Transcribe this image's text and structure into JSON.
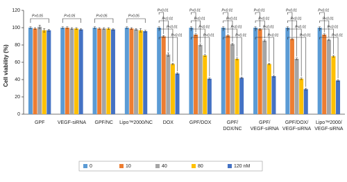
{
  "chart_data": {
    "type": "bar",
    "y_label": "Cell viability (%)",
    "categories": [
      [
        "GPF"
      ],
      [
        "VEGF-siRNA"
      ],
      [
        "GPF/NC"
      ],
      [
        "Lipo™2000/NC"
      ],
      [
        "DOX"
      ],
      [
        "GPF/DOX"
      ],
      [
        "GPF/",
        "DOX/NC"
      ],
      [
        "GPF/",
        "VEGF-siRNA"
      ],
      [
        "GPF/DOX/",
        "VEGF-siRNA"
      ],
      [
        "Lipo™2000/",
        "VEGF-siRNA"
      ]
    ],
    "series": [
      {
        "name": "0",
        "color": "#5b9bd5",
        "values": [
          100,
          100,
          100,
          100,
          100,
          100,
          100,
          100,
          100,
          100
        ],
        "errors": [
          1,
          1,
          1,
          1,
          1,
          1,
          1,
          1,
          1,
          1
        ]
      },
      {
        "name": "10",
        "color": "#ed7d31",
        "values": [
          99,
          100,
          99,
          99,
          90,
          92,
          91,
          98,
          87,
          92
        ],
        "errors": [
          1,
          1,
          1,
          1,
          1,
          1,
          1,
          1,
          1,
          1
        ]
      },
      {
        "name": "40",
        "color": "#a5a5a5",
        "values": [
          101,
          99,
          99,
          98,
          69,
          80,
          81,
          85,
          64,
          86
        ],
        "errors": [
          2,
          1,
          1,
          1,
          2,
          1,
          1,
          1,
          1,
          1
        ]
      },
      {
        "name": "80",
        "color": "#ffc000",
        "values": [
          97,
          99,
          99,
          97,
          58,
          68,
          64,
          58,
          41,
          67
        ],
        "errors": [
          2,
          1,
          1,
          2,
          1,
          1,
          1,
          1,
          1,
          1
        ]
      },
      {
        "name": "120 nM",
        "color": "#4472c4",
        "values": [
          97,
          98,
          98,
          96,
          47,
          41,
          42,
          44,
          29,
          39
        ],
        "errors": [
          1,
          1,
          1,
          1,
          1,
          1,
          1,
          1,
          1,
          1
        ]
      }
    ],
    "significance": [
      [
        "P>0.05"
      ],
      [
        "P>0.05"
      ],
      [
        "P>0.05"
      ],
      [
        "P>0.05"
      ],
      [
        "P<0.01",
        "P<0.01",
        "P<0.01",
        "P<0.01"
      ],
      [
        "P<0.01",
        "P<0.01",
        "P<0.01",
        "P<0.01"
      ],
      [
        "P<0.01",
        "P<0.01",
        "P<0.01",
        "P<0.01"
      ],
      [
        "P<0.01",
        "P<0.01",
        "P<0.01",
        "P<0.01"
      ],
      [
        "P<0.01",
        "P<0.01",
        "P<0.01",
        "P<0.01"
      ],
      [
        "P<0.01",
        "P<0.01",
        "P<0.01",
        "P<0.01"
      ]
    ],
    "ylim": [
      0,
      120
    ],
    "yticks": [
      0,
      20,
      40,
      60,
      80,
      100,
      120
    ],
    "legend": "bottom"
  }
}
